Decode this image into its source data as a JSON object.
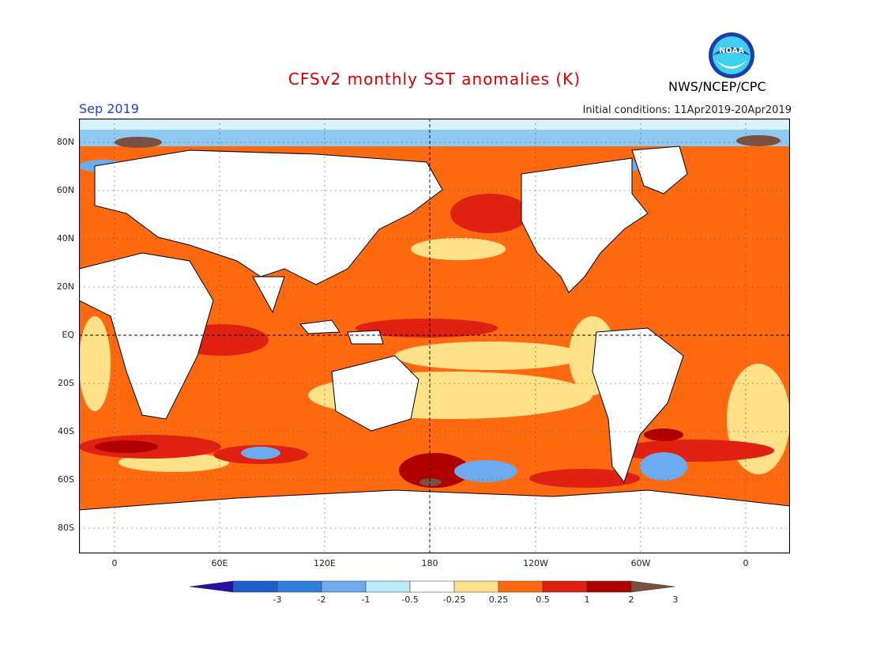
{
  "title": "CFSv2 monthly SST anomalies (K)",
  "org": "NWS/NCEP/CPC",
  "logo_text": "NOAA",
  "month": "Sep 2019",
  "initial_conditions": "Initial conditions: 11Apr2019-20Apr2019",
  "lat_labels": [
    "80N",
    "60N",
    "40N",
    "20N",
    "EQ",
    "20S",
    "40S",
    "60S",
    "80S"
  ],
  "lon_labels": [
    "0",
    "60E",
    "120E",
    "180",
    "120W",
    "60W",
    "0"
  ],
  "colorbar": {
    "labels": [
      "-3",
      "-2",
      "-1",
      "-0.5",
      "-0.25",
      "0.25",
      "0.5",
      "1",
      "2",
      "3"
    ],
    "colors": [
      "#2a10a0",
      "#1c5fcc",
      "#2f7fe0",
      "#6eaaf0",
      "#b8ecf8",
      "#ffffff",
      "#ffe18a",
      "#ff6a10",
      "#e02010",
      "#b00000",
      "#7a5040"
    ]
  },
  "colors": {
    "title": "#d40000",
    "month": "#1f3fd6",
    "land": "#ffffff",
    "ocean_default": "#ff6a10"
  }
}
